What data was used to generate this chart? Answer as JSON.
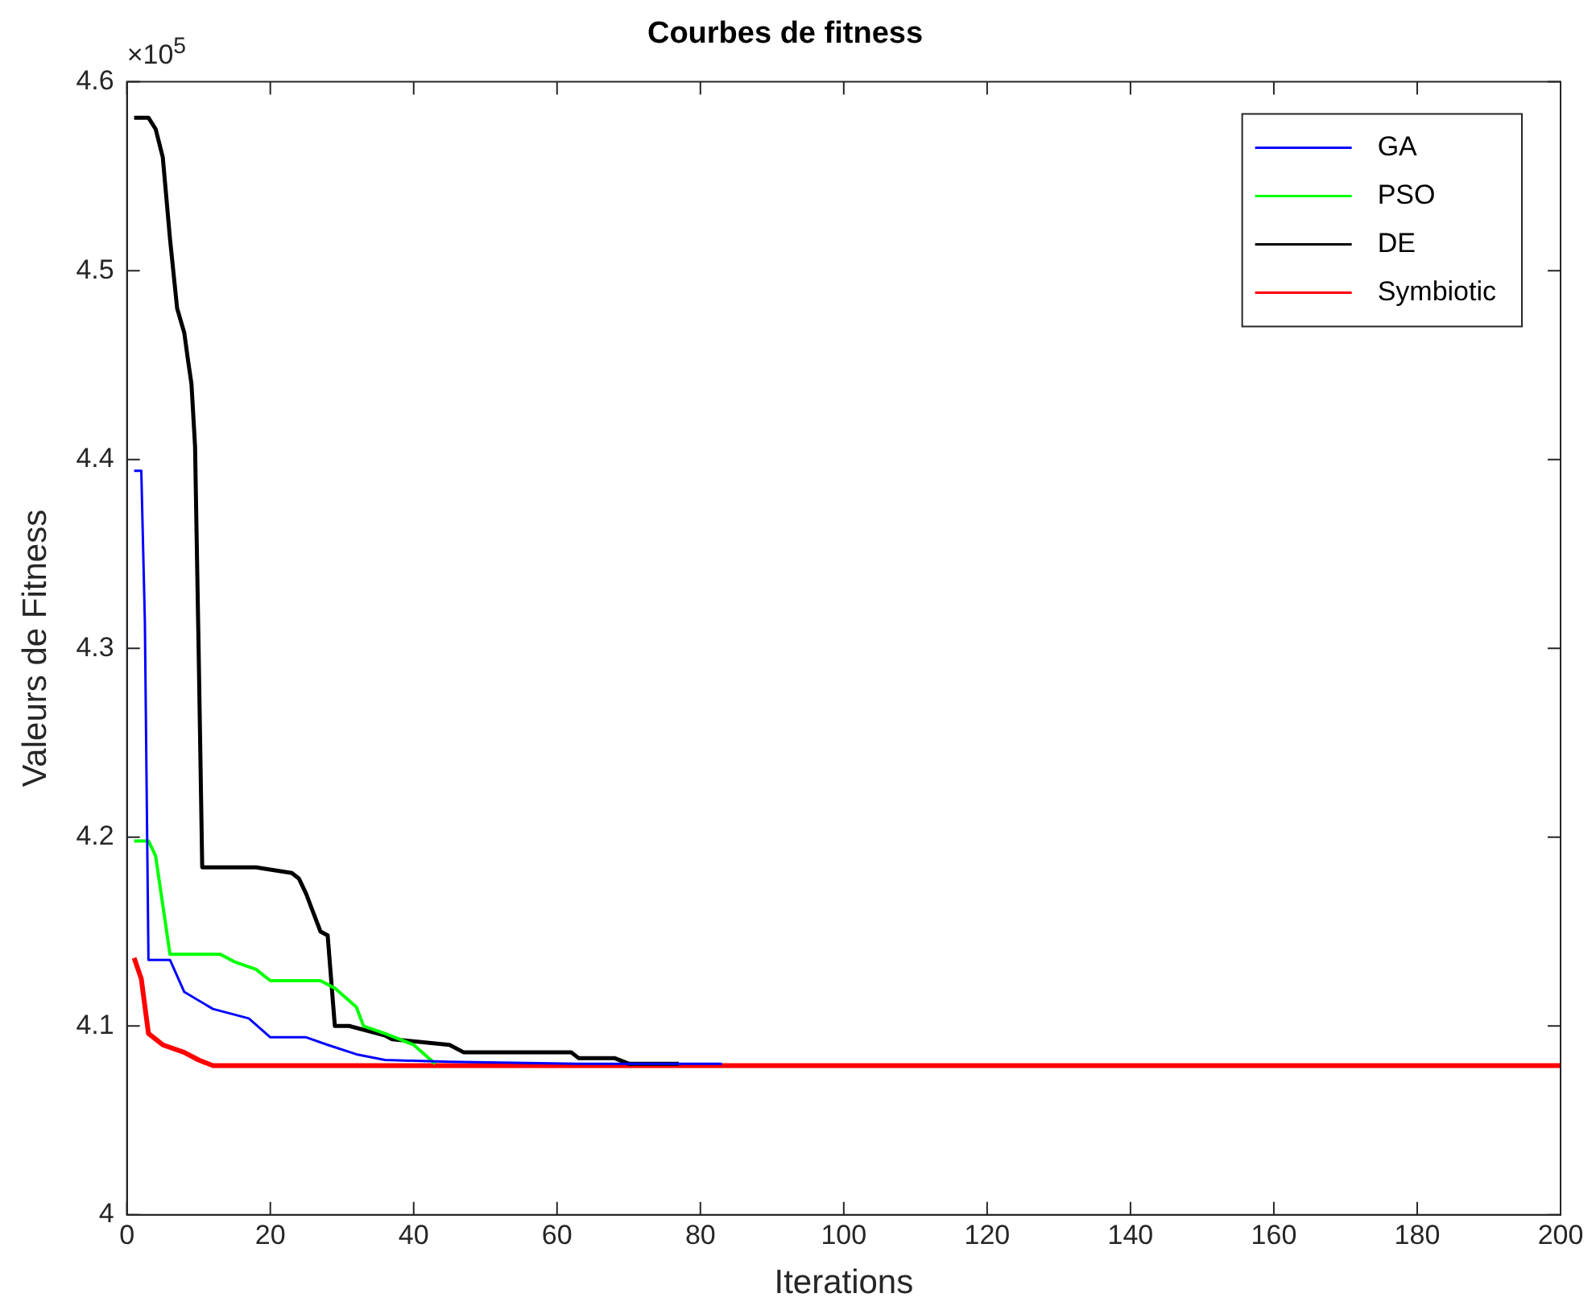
{
  "chart_data": {
    "type": "line",
    "title": "Courbes de fitness",
    "xlabel": "Iterations",
    "ylabel": "Valeurs de Fitness",
    "annotations": [
      "×10$^{5}$"
    ],
    "xlim": [
      0,
      200
    ],
    "xticks": [
      0,
      20,
      40,
      60,
      80,
      100,
      120,
      140,
      160,
      180,
      200
    ],
    "ylim": [
      4,
      4.6
    ],
    "yticks": [
      4,
      4.1,
      4.2,
      4.3,
      4.4,
      4.5,
      4.6
    ],
    "grid": false,
    "legend": "top right",
    "marker": "none",
    "line_style": "solid",
    "series": [
      {
        "name": "GA",
        "color": "#0000ff",
        "x": [
          1,
          2,
          2.5,
          3,
          6,
          8,
          12,
          17,
          20,
          25,
          28,
          32,
          36,
          45,
          63,
          83
        ],
        "values": [
          4.394,
          4.394,
          4.314,
          4.135,
          4.135,
          4.118,
          4.109,
          4.104,
          4.094,
          4.094,
          4.09,
          4.085,
          4.082,
          4.081,
          4.08,
          4.08
        ]
      },
      {
        "name": "PSO",
        "color": "#00ff00",
        "x": [
          1,
          3,
          4,
          6,
          13,
          15,
          18,
          20,
          27,
          29,
          32,
          33,
          36,
          38,
          40,
          43
        ],
        "values": [
          4.198,
          4.198,
          4.19,
          4.138,
          4.138,
          4.134,
          4.13,
          4.124,
          4.124,
          4.12,
          4.11,
          4.1,
          4.096,
          4.093,
          4.09,
          4.08
        ]
      },
      {
        "name": "DE",
        "color": "#000000",
        "x": [
          1,
          3,
          4,
          5,
          6,
          7,
          8,
          8.5,
          9,
          9.5,
          10,
          10.5,
          18,
          23,
          24,
          25,
          26,
          27,
          28,
          29,
          31,
          34,
          36,
          37,
          45,
          47,
          62,
          63,
          68,
          70,
          77
        ],
        "values": [
          4.581,
          4.581,
          4.575,
          4.56,
          4.517,
          4.48,
          4.467,
          4.453,
          4.44,
          4.407,
          4.299,
          4.184,
          4.184,
          4.181,
          4.178,
          4.17,
          4.16,
          4.15,
          4.148,
          4.1,
          4.1,
          4.097,
          4.095,
          4.093,
          4.09,
          4.086,
          4.086,
          4.083,
          4.083,
          4.08,
          4.08
        ]
      },
      {
        "name": "Symbiotic",
        "color": "#ff0000",
        "x": [
          1,
          2,
          3,
          5,
          8,
          10,
          12,
          200
        ],
        "values": [
          4.136,
          4.125,
          4.096,
          4.09,
          4.086,
          4.082,
          4.079,
          4.079
        ]
      }
    ]
  }
}
